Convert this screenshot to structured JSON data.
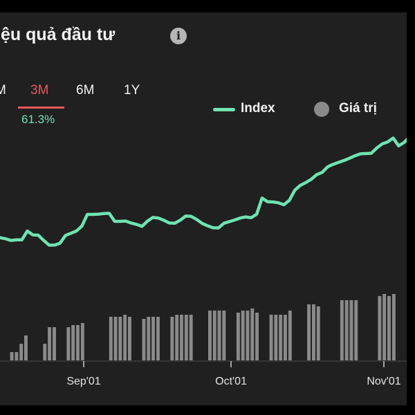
{
  "header": {
    "title": "iệu quả đầu tư",
    "info_icon": "info-icon"
  },
  "range_tabs": [
    {
      "label": "M",
      "active": false
    },
    {
      "label": "3M",
      "active": true
    },
    {
      "label": "6M",
      "active": false
    },
    {
      "label": "1Y",
      "active": false
    }
  ],
  "return_value": "61.3%",
  "legend": {
    "index_label": "Index",
    "value_label": "Giá trị"
  },
  "colors": {
    "background": "#202020",
    "index_line": "#6fe3b3",
    "bars": "#8a8a8a",
    "active_tab": "#e8575a"
  },
  "chart_data": {
    "type": "line",
    "x_tick_labels": [
      "Sep'01",
      "Oct'01",
      "Nov'01"
    ],
    "series": [
      {
        "name": "Index",
        "kind": "line",
        "values": [
          48.6,
          48.2,
          47.6,
          47.8,
          47.8,
          51.0,
          49.6,
          49.5,
          47.6,
          45.9,
          45.9,
          46.6,
          49.4,
          50.2,
          51.0,
          52.8,
          57.0,
          57.0,
          57.1,
          57.3,
          57.4,
          54.5,
          54.5,
          54.6,
          53.9,
          53.4,
          52.7,
          54.6,
          55.9,
          55.7,
          54.9,
          53.9,
          53.8,
          54.9,
          56.4,
          56.3,
          55.2,
          53.8,
          52.9,
          52.2,
          52.1,
          53.8,
          54.4,
          55.0,
          55.7,
          56.1,
          55.8,
          57.1,
          62.9,
          61.6,
          61.5,
          61.2,
          60.5,
          62.1,
          65.8,
          67.5,
          68.5,
          69.7,
          71.4,
          72.2,
          74.2,
          75.1,
          75.8,
          76.5,
          77.3,
          78.2,
          78.9,
          79.0,
          79.1,
          81.0,
          82.5,
          83.2,
          84.6,
          81.8,
          83.0,
          85.0,
          86.6
        ]
      },
      {
        "name": "Giá trị",
        "kind": "bar",
        "values": [
          null,
          null,
          4,
          4,
          8,
          12,
          null,
          null,
          null,
          8,
          16,
          16,
          null,
          null,
          16,
          17,
          17,
          18,
          null,
          null,
          null,
          null,
          null,
          21,
          21,
          21,
          22,
          21,
          null,
          null,
          20,
          21,
          21,
          21,
          null,
          null,
          21,
          22,
          22,
          22,
          22,
          null,
          null,
          null,
          24,
          24,
          24,
          24,
          null,
          null,
          23,
          24,
          24,
          25,
          23,
          null,
          null,
          22,
          22,
          22,
          22,
          24,
          null,
          null,
          null,
          27,
          27,
          26,
          null,
          null,
          null,
          null,
          29,
          29,
          29,
          29,
          null,
          null,
          null,
          null,
          31,
          32,
          31,
          32,
          null,
          null,
          null,
          null
        ]
      }
    ],
    "grid": false,
    "legend_position": "top-right"
  }
}
